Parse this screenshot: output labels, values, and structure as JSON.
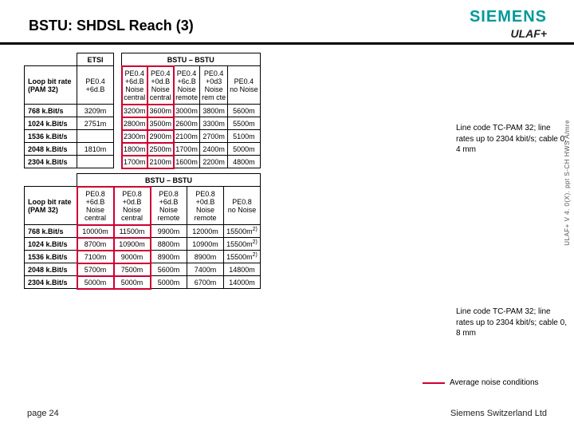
{
  "header": {
    "title": "BSTU: SHDSL Reach (3)",
    "brand1": "SIEMENS",
    "brand2": "ULAF+"
  },
  "table1": {
    "group_headers": [
      "",
      "ETSI",
      "BSTU – BSTU"
    ],
    "cond_row_label": "Loop bit rate (PAM 32)",
    "conditions": [
      [
        "PE0.4",
        "+6d.B",
        "",
        ""
      ],
      [
        "PE0.4",
        "+6d.B",
        "Noise",
        "central"
      ],
      [
        "PE0.4",
        "+0d.B",
        "Noise",
        "central"
      ],
      [
        "PE0.4",
        "+6c.B",
        "Noise",
        "remote"
      ],
      [
        "PE0.4",
        "+0d3",
        "Noise",
        "rem cte"
      ],
      [
        "PE0.4",
        "no Noise",
        "",
        ""
      ]
    ],
    "rows": [
      {
        "label": "768 k.Bit/s",
        "vals": [
          "3209m",
          "3200m",
          "3600m",
          "3000m",
          "3800m",
          "5600m"
        ]
      },
      {
        "label": "1024 k.Bit/s",
        "vals": [
          "2751m",
          "2800m",
          "3500m",
          "2600m",
          "3300m",
          "5500m"
        ]
      },
      {
        "label": "1536 k.Bit/s",
        "vals": [
          "",
          "2300m",
          "2900m",
          "2100m",
          "2700m",
          "5100m"
        ]
      },
      {
        "label": "2048 k.Bit/s",
        "vals": [
          "1810m",
          "1800m",
          "2500m",
          "1700m",
          "2400m",
          "5000m"
        ]
      },
      {
        "label": "2304 k.Bit/s",
        "vals": [
          "",
          "1700m",
          "2100m",
          "1600m",
          "2200m",
          "4800m"
        ]
      }
    ],
    "hl_cols": [
      2,
      3
    ]
  },
  "table2": {
    "group_headers": [
      "",
      "BSTU – BSTU"
    ],
    "cond_row_label": "Loop bit rate (PAM 32)",
    "conditions": [
      [
        "PE0.8",
        "+6d.B",
        "Noise",
        "central"
      ],
      [
        "PE0.8",
        "+0d.B",
        "Noise",
        "central"
      ],
      [
        "PE0.8",
        "+6d.B",
        "Noise",
        "remote"
      ],
      [
        "PE0.8",
        "+0d.B",
        "Noise",
        "remote"
      ],
      [
        "PE0.8",
        "no Noise",
        "",
        ""
      ]
    ],
    "rows": [
      {
        "label": "768 k.Bit/s",
        "vals": [
          "10000m",
          "11500m",
          "9900m",
          "12000m",
          "15500m"
        ],
        "sup": [
          0,
          0,
          0,
          0,
          1
        ]
      },
      {
        "label": "1024 k.Bit/s",
        "vals": [
          "8700m",
          "10900m",
          "8800m",
          "10900m",
          "15500m"
        ],
        "sup": [
          0,
          0,
          0,
          0,
          1
        ]
      },
      {
        "label": "1536 k.Bit/s",
        "vals": [
          "7100m",
          "9000m",
          "8900m",
          "8900m",
          "15500m"
        ],
        "sup": [
          0,
          0,
          0,
          0,
          1
        ]
      },
      {
        "label": "2048 k.Bit/s",
        "vals": [
          "5700m",
          "7500m",
          "5600m",
          "7400m",
          "14800m"
        ],
        "sup": [
          0,
          0,
          0,
          0,
          0
        ]
      },
      {
        "label": "2304 k.Bit/s",
        "vals": [
          "5000m",
          "5000m",
          "5000m",
          "6700m",
          "14000m"
        ],
        "sup": [
          0,
          0,
          0,
          0,
          0
        ]
      }
    ],
    "hl_cols": [
      1,
      2
    ]
  },
  "notes": {
    "n1": "Line code TC-PAM 32; line rates up to 2304 kbit/s; cable 0, 4 mm",
    "n2": "Line code TC-PAM 32; line rates up to 2304 kbit/s; cable 0, 8 mm"
  },
  "legend": "Average noise conditions",
  "sidetext": "ULAF+ V 4. 0(X). ppt  S-CH HWS A/mre",
  "footer": {
    "left": "page 24",
    "right": "Siemens Switzerland Ltd"
  },
  "colors": {
    "accent": "#009999",
    "highlight": "#cc0033"
  }
}
